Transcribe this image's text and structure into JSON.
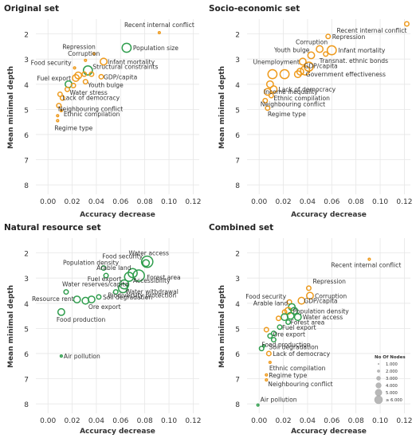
{
  "colors": {
    "orange": "#ee9a1c",
    "green": "#2e9d4c",
    "legend_gray": "#b8b8b8"
  },
  "chart_data": [
    {
      "type": "scatter",
      "title": "Original set",
      "xlabel": "Accuracy decrease",
      "ylabel": "Mean minimal depth",
      "xlim": [
        -0.01,
        0.125
      ],
      "ylim": [
        8.25,
        1.6
      ],
      "xticks": [
        "0.00",
        "0.02",
        "0.04",
        "0.06",
        "0.08",
        "0.10",
        "0.12"
      ],
      "yticks": [
        "2",
        "3",
        "4",
        "5",
        "6",
        "7",
        "8"
      ],
      "grid": true,
      "points": [
        {
          "label": "Recent internal conflict",
          "x": 0.092,
          "y": 1.95,
          "color": "orange",
          "size": 1
        },
        {
          "label": "Population size",
          "x": 0.065,
          "y": 2.55,
          "color": "green",
          "size": 4
        },
        {
          "label": "Repression",
          "x": 0.038,
          "y": 2.78,
          "color": "orange",
          "size": 1
        },
        {
          "label": "Corruption",
          "x": 0.031,
          "y": 3.05,
          "color": "orange",
          "size": 1
        },
        {
          "label": "Infant mortality",
          "x": 0.046,
          "y": 3.1,
          "color": "orange",
          "size": 3
        },
        {
          "label": "Food security",
          "x": 0.022,
          "y": 3.35,
          "color": "orange",
          "size": 1
        },
        {
          "label": "Structural constraints",
          "x": 0.033,
          "y": 3.45,
          "color": "green",
          "size": 4
        },
        {
          "label": "",
          "x": 0.036,
          "y": 3.6,
          "color": "orange",
          "size": 2
        },
        {
          "label": "GDP/capita",
          "x": 0.044,
          "y": 3.7,
          "color": "orange",
          "size": 2
        },
        {
          "label": "",
          "x": 0.03,
          "y": 3.6,
          "color": "orange",
          "size": 2
        },
        {
          "label": "",
          "x": 0.025,
          "y": 3.65,
          "color": "orange",
          "size": 3
        },
        {
          "label": "Fuel export",
          "x": 0.023,
          "y": 3.75,
          "color": "orange",
          "size": 3
        },
        {
          "label": "Youth bulge",
          "x": 0.031,
          "y": 3.9,
          "color": "orange",
          "size": 2
        },
        {
          "label": "",
          "x": 0.017,
          "y": 4.0,
          "color": "green",
          "size": 3
        },
        {
          "label": "",
          "x": 0.021,
          "y": 4.05,
          "color": "orange",
          "size": 2
        },
        {
          "label": "Water stress",
          "x": 0.016,
          "y": 4.2,
          "color": "orange",
          "size": 2
        },
        {
          "label": "Lack of democracy",
          "x": 0.01,
          "y": 4.4,
          "color": "orange",
          "size": 2
        },
        {
          "label": "",
          "x": 0.012,
          "y": 4.55,
          "color": "orange",
          "size": 2
        },
        {
          "label": "Neighbouring conflict",
          "x": 0.009,
          "y": 4.85,
          "color": "orange",
          "size": 2
        },
        {
          "label": "Ethnic compilation",
          "x": 0.011,
          "y": 5.05,
          "color": "orange",
          "size": 1
        },
        {
          "label": "",
          "x": 0.008,
          "y": 5.25,
          "color": "orange",
          "size": 1
        },
        {
          "label": "Regime type",
          "x": 0.008,
          "y": 5.45,
          "color": "orange",
          "size": 1
        }
      ]
    },
    {
      "type": "scatter",
      "title": "Socio-economic set",
      "xlabel": "Accuracy decrease",
      "ylabel": "Mean minimal depth",
      "xlim": [
        -0.01,
        0.125
      ],
      "ylim": [
        8.25,
        1.6
      ],
      "xticks": [
        "0.00",
        "0.02",
        "0.04",
        "0.06",
        "0.08",
        "0.10",
        "0.12"
      ],
      "yticks": [
        "2",
        "3",
        "4",
        "5",
        "6",
        "7",
        "8"
      ],
      "grid": true,
      "points": [
        {
          "label": "Recent internal conflict",
          "x": 0.122,
          "y": 1.6,
          "color": "orange",
          "size": 2
        },
        {
          "label": "Repression",
          "x": 0.057,
          "y": 2.1,
          "color": "orange",
          "size": 2
        },
        {
          "label": "Corruption",
          "x": 0.05,
          "y": 2.6,
          "color": "orange",
          "size": 3
        },
        {
          "label": "Infant mortality",
          "x": 0.06,
          "y": 2.65,
          "color": "orange",
          "size": 4
        },
        {
          "label": "Youth bulge",
          "x": 0.043,
          "y": 2.85,
          "color": "orange",
          "size": 3
        },
        {
          "label": "Transnat. ethnic bonds",
          "x": 0.055,
          "y": 2.8,
          "color": "orange",
          "size": 2
        },
        {
          "label": "Unemployment",
          "x": 0.036,
          "y": 3.1,
          "color": "orange",
          "size": 3
        },
        {
          "label": "GDP/capita",
          "x": 0.041,
          "y": 3.3,
          "color": "orange",
          "size": 4
        },
        {
          "label": "",
          "x": 0.038,
          "y": 3.45,
          "color": "orange",
          "size": 4
        },
        {
          "label": "",
          "x": 0.034,
          "y": 3.5,
          "color": "orange",
          "size": 3
        },
        {
          "label": "Government effectiveness",
          "x": 0.032,
          "y": 3.6,
          "color": "orange",
          "size": 3
        },
        {
          "label": "",
          "x": 0.011,
          "y": 3.6,
          "color": "orange",
          "size": 4
        },
        {
          "label": "",
          "x": 0.021,
          "y": 3.6,
          "color": "orange",
          "size": 4
        },
        {
          "label": "Income inequality",
          "x": 0.009,
          "y": 4.0,
          "color": "orange",
          "size": 3
        },
        {
          "label": "Lack of democracy",
          "x": 0.012,
          "y": 4.2,
          "color": "orange",
          "size": 3
        },
        {
          "label": "",
          "x": 0.007,
          "y": 4.3,
          "color": "orange",
          "size": 3
        },
        {
          "label": "Ethnic compilation",
          "x": 0.01,
          "y": 4.45,
          "color": "orange",
          "size": 2
        },
        {
          "label": "Neighbouring conflict",
          "x": 0.005,
          "y": 4.65,
          "color": "orange",
          "size": 2
        },
        {
          "label": "Regime type",
          "x": 0.007,
          "y": 4.95,
          "color": "orange",
          "size": 2
        }
      ]
    },
    {
      "type": "scatter",
      "title": "Natural resource set",
      "xlabel": "Accuracy decrease",
      "ylabel": "Mean minimal depth",
      "xlim": [
        -0.01,
        0.125
      ],
      "ylim": [
        8.25,
        1.6
      ],
      "xticks": [
        "0.00",
        "0.02",
        "0.04",
        "0.06",
        "0.08",
        "0.10",
        "0.12"
      ],
      "yticks": [
        "2",
        "3",
        "4",
        "5",
        "6",
        "7",
        "8"
      ],
      "grid": true,
      "points": [
        {
          "label": "Water access",
          "x": 0.082,
          "y": 2.35,
          "color": "green",
          "size": 5
        },
        {
          "label": "Food security",
          "x": 0.081,
          "y": 2.4,
          "color": "green",
          "size": 3
        },
        {
          "label": "Population density",
          "x": 0.046,
          "y": 2.6,
          "color": "green",
          "size": 2
        },
        {
          "label": "Arable land",
          "x": 0.07,
          "y": 2.8,
          "color": "green",
          "size": 4
        },
        {
          "label": "Fuel export",
          "x": 0.048,
          "y": 2.9,
          "color": "green",
          "size": 2
        },
        {
          "label": "Forest area",
          "x": 0.075,
          "y": 2.9,
          "color": "green",
          "size": 5
        },
        {
          "label": "",
          "x": 0.067,
          "y": 2.95,
          "color": "green",
          "size": 4
        },
        {
          "label": "Accessibility",
          "x": 0.063,
          "y": 3.25,
          "color": "green",
          "size": 4
        },
        {
          "label": "Water withdrawal",
          "x": 0.062,
          "y": 3.4,
          "color": "green",
          "size": 4
        },
        {
          "label": "Water reserves/capita",
          "x": 0.015,
          "y": 3.55,
          "color": "green",
          "size": 2
        },
        {
          "label": "Biodiversity protection",
          "x": 0.056,
          "y": 3.55,
          "color": "green",
          "size": 2
        },
        {
          "label": "Resource rent",
          "x": 0.024,
          "y": 3.85,
          "color": "green",
          "size": 3
        },
        {
          "label": "",
          "x": 0.031,
          "y": 3.9,
          "color": "green",
          "size": 3
        },
        {
          "label": "Soil degradation",
          "x": 0.042,
          "y": 3.75,
          "color": "green",
          "size": 2
        },
        {
          "label": "Ore export",
          "x": 0.036,
          "y": 3.85,
          "color": "green",
          "size": 3
        },
        {
          "label": "Food production",
          "x": 0.011,
          "y": 4.35,
          "color": "green",
          "size": 3
        },
        {
          "label": "Air pollution",
          "x": 0.011,
          "y": 6.1,
          "color": "green",
          "size": 1
        }
      ]
    },
    {
      "type": "scatter",
      "title": "Combined set",
      "xlabel": "Accuracy decrease",
      "ylabel": "Mean minimal depth",
      "xlim": [
        -0.01,
        0.125
      ],
      "ylim": [
        8.25,
        1.6
      ],
      "xticks": [
        "0.00",
        "0.02",
        "0.04",
        "0.06",
        "0.08",
        "0.10",
        "0.12"
      ],
      "yticks": [
        "2",
        "3",
        "4",
        "5",
        "6",
        "7",
        "8"
      ],
      "grid": true,
      "legend": {
        "title": "No Of Nodes",
        "entries": [
          "1.000",
          "2.000",
          "3.000",
          "4.000",
          "5.000",
          "≥ 6.000"
        ],
        "position": "bottom-right"
      },
      "points": [
        {
          "label": "Recent internal conflict",
          "x": 0.091,
          "y": 2.25,
          "color": "orange",
          "size": 1
        },
        {
          "label": "Repression",
          "x": 0.041,
          "y": 3.4,
          "color": "orange",
          "size": 2
        },
        {
          "label": "Corruption",
          "x": 0.042,
          "y": 3.7,
          "color": "orange",
          "size": 3
        },
        {
          "label": "Food security",
          "x": 0.025,
          "y": 3.95,
          "color": "orange",
          "size": 2
        },
        {
          "label": "GDP/capita",
          "x": 0.035,
          "y": 3.9,
          "color": "orange",
          "size": 3
        },
        {
          "label": "Arable land",
          "x": 0.027,
          "y": 4.15,
          "color": "green",
          "size": 3
        },
        {
          "label": "Population density",
          "x": 0.024,
          "y": 4.3,
          "color": "orange",
          "size": 3
        },
        {
          "label": "",
          "x": 0.029,
          "y": 4.3,
          "color": "green",
          "size": 3
        },
        {
          "label": "",
          "x": 0.021,
          "y": 4.35,
          "color": "orange",
          "size": 2
        },
        {
          "label": "Water access",
          "x": 0.032,
          "y": 4.55,
          "color": "green",
          "size": 3
        },
        {
          "label": "",
          "x": 0.026,
          "y": 4.5,
          "color": "green",
          "size": 3
        },
        {
          "label": "",
          "x": 0.021,
          "y": 4.55,
          "color": "green",
          "size": 3
        },
        {
          "label": "",
          "x": 0.016,
          "y": 4.6,
          "color": "orange",
          "size": 2
        },
        {
          "label": "Forest area",
          "x": 0.024,
          "y": 4.75,
          "color": "green",
          "size": 2
        },
        {
          "label": "Fuel export",
          "x": 0.017,
          "y": 4.95,
          "color": "green",
          "size": 2
        },
        {
          "label": "Ore export",
          "x": 0.012,
          "y": 5.2,
          "color": "green",
          "size": 2
        },
        {
          "label": "",
          "x": 0.006,
          "y": 5.05,
          "color": "orange",
          "size": 2
        },
        {
          "label": "",
          "x": 0.009,
          "y": 5.3,
          "color": "green",
          "size": 2
        },
        {
          "label": "Soil degradation",
          "x": 0.012,
          "y": 5.45,
          "color": "green",
          "size": 2
        },
        {
          "label": "Food production",
          "x": 0.002,
          "y": 5.8,
          "color": "green",
          "size": 2
        },
        {
          "label": "",
          "x": 0.004,
          "y": 5.7,
          "color": "green",
          "size": 1
        },
        {
          "label": "Lack of democracy",
          "x": 0.008,
          "y": 6.0,
          "color": "orange",
          "size": 2
        },
        {
          "label": "Ethnic compilation",
          "x": 0.009,
          "y": 6.35,
          "color": "orange",
          "size": 1
        },
        {
          "label": "Regime type",
          "x": 0.006,
          "y": 6.85,
          "color": "orange",
          "size": 1
        },
        {
          "label": "Neighbouring conflict",
          "x": 0.006,
          "y": 7.05,
          "color": "orange",
          "size": 1
        },
        {
          "label": "Air pollution",
          "x": -0.001,
          "y": 8.05,
          "color": "green",
          "size": 1
        }
      ]
    }
  ]
}
